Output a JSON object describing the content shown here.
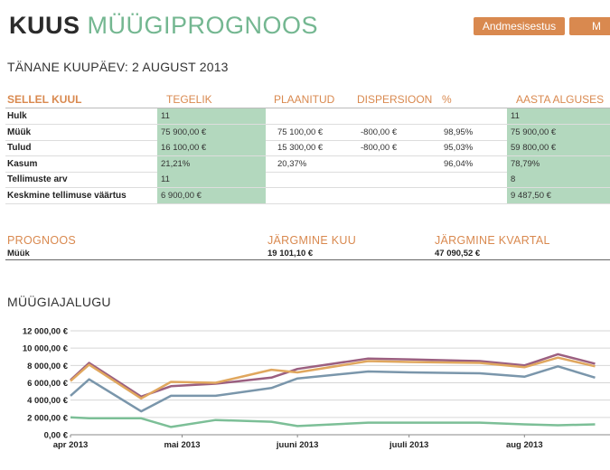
{
  "header": {
    "title_part1": "KUUS",
    "title_part2": "MÜÜGIPROGNOOS",
    "btn_data": "Andmesisestus",
    "btn_second": "M"
  },
  "date_line": "TÄNANE KUUPÄEV: 2 AUGUST 2013",
  "table": {
    "headers": [
      "SELLEL KUUL",
      "TEGELIK",
      "PLAANITUD",
      "DISPERSIOON",
      "%",
      "AASTA ALGUSES"
    ],
    "rows": [
      {
        "label": "Hulk",
        "tegelik": "11",
        "plaanitud": "",
        "dispersioon": "",
        "pct": "",
        "aasta": "11"
      },
      {
        "label": "Müük",
        "tegelik": "75 900,00 €",
        "plaanitud": "75 100,00 €",
        "dispersioon": "-800,00 €",
        "pct": "98,95%",
        "aasta": "75 900,00 €"
      },
      {
        "label": "Tulud",
        "tegelik": "16 100,00 €",
        "plaanitud": "15 300,00 €",
        "dispersioon": "-800,00 €",
        "pct": "95,03%",
        "aasta": "59 800,00 €"
      },
      {
        "label": "Kasum",
        "tegelik": "21,21%",
        "plaanitud": "20,37%",
        "dispersioon": "",
        "pct": "96,04%",
        "aasta": "78,79%"
      },
      {
        "label": "Tellimuste arv",
        "tegelik": "11",
        "plaanitud": "",
        "dispersioon": "",
        "pct": "",
        "aasta": "8"
      },
      {
        "label": "Keskmine tellimuse väärtus",
        "tegelik": "6 900,00 €",
        "plaanitud": "",
        "dispersioon": "",
        "pct": "",
        "aasta": "9 487,50 €"
      }
    ]
  },
  "forecast": {
    "headers": [
      "PROGNOOS",
      "JÄRGMINE KUU",
      "JÄRGMINE KVARTAL"
    ],
    "row": {
      "label": "Müük",
      "next_month": "19 101,10 €",
      "next_quarter": "47 090,52 €"
    }
  },
  "chart_title": "MÜÜGIAJALUGU",
  "chart_data": {
    "type": "line",
    "ylim": [
      0,
      12000
    ],
    "yticks": [
      "0,00 €",
      "2 000,00 €",
      "4 000,00 €",
      "6 000,00 €",
      "8 000,00 €",
      "10 000,00 €",
      "12 000,00 €"
    ],
    "xticks": [
      "apr 2013",
      "mai 2013",
      "juuni 2013",
      "juuli 2013",
      "aug 2013"
    ],
    "x_dates": [
      "2013-04-01",
      "2013-05-01",
      "2013-06-01",
      "2013-07-01",
      "2013-08-01"
    ],
    "grid": true,
    "colors": [
      "#9b5f80",
      "#e0a75e",
      "#7a96ab",
      "#7cbf97"
    ],
    "series": [
      {
        "x": [
          "2013-04-01",
          "2013-04-06",
          "2013-04-20",
          "2013-04-28",
          "2013-05-10",
          "2013-05-25",
          "2013-06-01",
          "2013-06-20",
          "2013-07-01",
          "2013-07-20",
          "2013-08-01",
          "2013-08-10",
          "2013-08-20"
        ],
        "values": [
          6300,
          8300,
          4400,
          5600,
          5900,
          6600,
          7600,
          8800,
          8700,
          8500,
          8000,
          9300,
          8200
        ]
      },
      {
        "x": [
          "2013-04-01",
          "2013-04-06",
          "2013-04-20",
          "2013-04-28",
          "2013-05-10",
          "2013-05-25",
          "2013-06-01",
          "2013-06-20",
          "2013-07-01",
          "2013-07-20",
          "2013-08-01",
          "2013-08-10",
          "2013-08-20"
        ],
        "values": [
          6200,
          8100,
          4200,
          6100,
          6000,
          7500,
          7200,
          8500,
          8400,
          8300,
          7800,
          8900,
          7900
        ]
      },
      {
        "x": [
          "2013-04-01",
          "2013-04-06",
          "2013-04-20",
          "2013-04-28",
          "2013-05-10",
          "2013-05-25",
          "2013-06-01",
          "2013-06-20",
          "2013-07-01",
          "2013-07-20",
          "2013-08-01",
          "2013-08-10",
          "2013-08-20"
        ],
        "values": [
          4500,
          6400,
          2700,
          4500,
          4500,
          5400,
          6500,
          7300,
          7200,
          7100,
          6700,
          7900,
          6600
        ]
      },
      {
        "x": [
          "2013-04-01",
          "2013-04-06",
          "2013-04-20",
          "2013-04-28",
          "2013-05-10",
          "2013-05-25",
          "2013-06-01",
          "2013-06-20",
          "2013-07-01",
          "2013-07-20",
          "2013-08-01",
          "2013-08-10",
          "2013-08-20"
        ],
        "values": [
          2000,
          1900,
          1900,
          900,
          1700,
          1500,
          1000,
          1400,
          1400,
          1400,
          1200,
          1100,
          1200
        ]
      }
    ]
  }
}
